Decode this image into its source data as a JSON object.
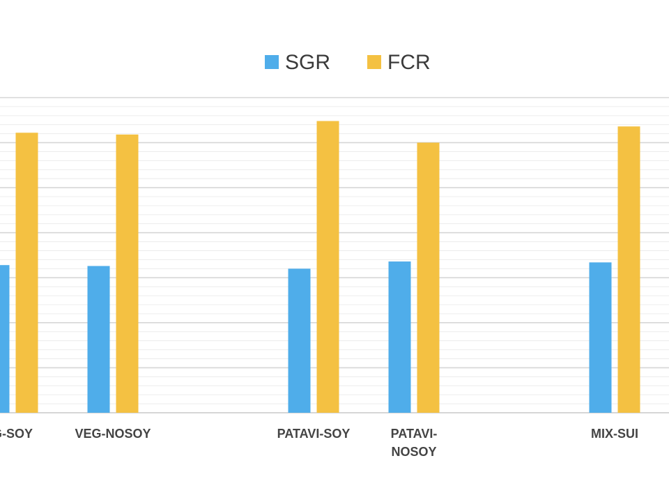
{
  "chart_data": {
    "type": "bar",
    "categories": [
      "VEG-SOY",
      "VEG-NOSOY",
      "",
      "PATAVI-SOY",
      "PATAVI-NOSOY",
      "",
      "MIX-SUI"
    ],
    "category_labels": [
      {
        "text": "G-SOY",
        "lines": [
          "G-SOY"
        ]
      },
      {
        "text": "VEG-NOSOY",
        "lines": [
          "VEG-NOSOY"
        ]
      },
      {
        "text": "",
        "lines": []
      },
      {
        "text": "PATAVI-SOY",
        "lines": [
          "PATAVI-SOY"
        ]
      },
      {
        "text": "PATAVI-NOSOY",
        "lines": [
          "PATAVI-",
          "NOSOY"
        ]
      },
      {
        "text": "",
        "lines": []
      },
      {
        "text": "MIX-SUI",
        "lines": [
          "MIX-SUI"
        ]
      }
    ],
    "series": [
      {
        "name": "SGR",
        "color": "#4FADEA",
        "values": [
          1.64,
          1.63,
          null,
          1.6,
          1.68,
          null,
          1.67
        ]
      },
      {
        "name": "FCR",
        "color": "#F4C142",
        "values": [
          3.11,
          3.09,
          null,
          3.24,
          3.0,
          null,
          3.18
        ]
      }
    ],
    "ylim": [
      0,
      3.5
    ],
    "grid": true,
    "legend_position": "top-center",
    "title": "",
    "xlabel": "",
    "ylabel": ""
  }
}
